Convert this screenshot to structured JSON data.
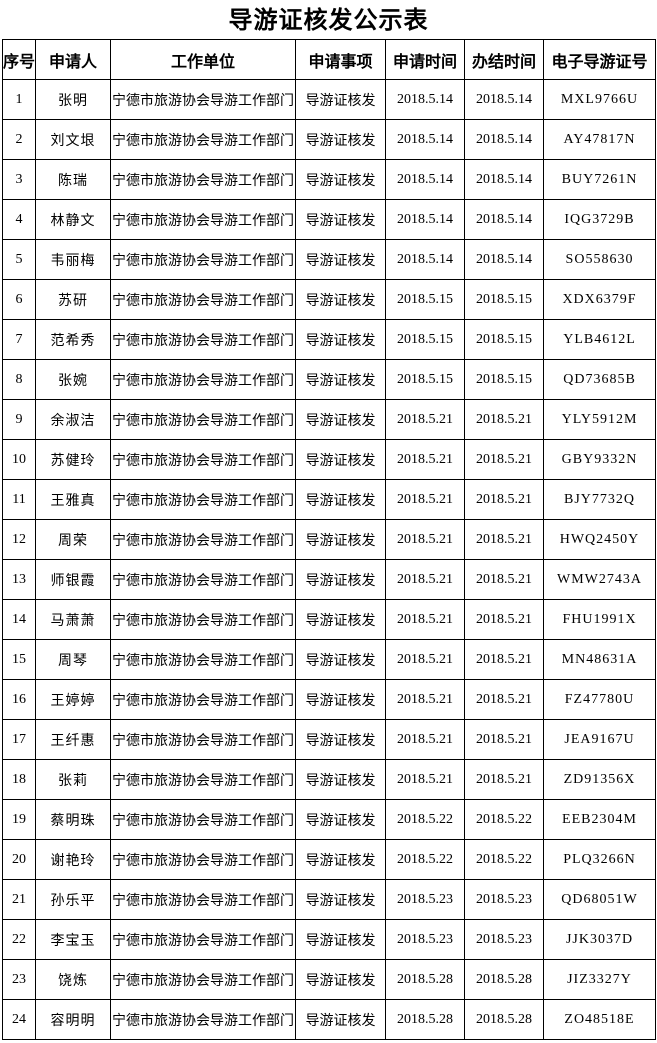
{
  "doc": {
    "title": "导游证核发公示表"
  },
  "table": {
    "columns": [
      "序号",
      "申请人",
      "工作单位",
      "申请事项",
      "申请时间",
      "办结时间",
      "电子导游证号"
    ],
    "rows": [
      [
        "1",
        "张明",
        "宁德市旅游协会导游工作部门",
        "导游证核发",
        "2018.5.14",
        "2018.5.14",
        "MXL9766U"
      ],
      [
        "2",
        "刘文垠",
        "宁德市旅游协会导游工作部门",
        "导游证核发",
        "2018.5.14",
        "2018.5.14",
        "AY47817N"
      ],
      [
        "3",
        "陈瑞",
        "宁德市旅游协会导游工作部门",
        "导游证核发",
        "2018.5.14",
        "2018.5.14",
        "BUY7261N"
      ],
      [
        "4",
        "林静文",
        "宁德市旅游协会导游工作部门",
        "导游证核发",
        "2018.5.14",
        "2018.5.14",
        "IQG3729B"
      ],
      [
        "5",
        "韦丽梅",
        "宁德市旅游协会导游工作部门",
        "导游证核发",
        "2018.5.14",
        "2018.5.14",
        "SO558630"
      ],
      [
        "6",
        "苏研",
        "宁德市旅游协会导游工作部门",
        "导游证核发",
        "2018.5.15",
        "2018.5.15",
        "XDX6379F"
      ],
      [
        "7",
        "范希秀",
        "宁德市旅游协会导游工作部门",
        "导游证核发",
        "2018.5.15",
        "2018.5.15",
        "YLB4612L"
      ],
      [
        "8",
        "张婉",
        "宁德市旅游协会导游工作部门",
        "导游证核发",
        "2018.5.15",
        "2018.5.15",
        "QD73685B"
      ],
      [
        "9",
        "余淑洁",
        "宁德市旅游协会导游工作部门",
        "导游证核发",
        "2018.5.21",
        "2018.5.21",
        "YLY5912M"
      ],
      [
        "10",
        "苏健玲",
        "宁德市旅游协会导游工作部门",
        "导游证核发",
        "2018.5.21",
        "2018.5.21",
        "GBY9332N"
      ],
      [
        "11",
        "王雅真",
        "宁德市旅游协会导游工作部门",
        "导游证核发",
        "2018.5.21",
        "2018.5.21",
        "BJY7732Q"
      ],
      [
        "12",
        "周荣",
        "宁德市旅游协会导游工作部门",
        "导游证核发",
        "2018.5.21",
        "2018.5.21",
        "HWQ2450Y"
      ],
      [
        "13",
        "师银霞",
        "宁德市旅游协会导游工作部门",
        "导游证核发",
        "2018.5.21",
        "2018.5.21",
        "WMW2743A"
      ],
      [
        "14",
        "马萧萧",
        "宁德市旅游协会导游工作部门",
        "导游证核发",
        "2018.5.21",
        "2018.5.21",
        "FHU1991X"
      ],
      [
        "15",
        "周琴",
        "宁德市旅游协会导游工作部门",
        "导游证核发",
        "2018.5.21",
        "2018.5.21",
        "MN48631A"
      ],
      [
        "16",
        "王婷婷",
        "宁德市旅游协会导游工作部门",
        "导游证核发",
        "2018.5.21",
        "2018.5.21",
        "FZ47780U"
      ],
      [
        "17",
        "王纤惠",
        "宁德市旅游协会导游工作部门",
        "导游证核发",
        "2018.5.21",
        "2018.5.21",
        "JEA9167U"
      ],
      [
        "18",
        "张莉",
        "宁德市旅游协会导游工作部门",
        "导游证核发",
        "2018.5.21",
        "2018.5.21",
        "ZD91356X"
      ],
      [
        "19",
        "蔡明珠",
        "宁德市旅游协会导游工作部门",
        "导游证核发",
        "2018.5.22",
        "2018.5.22",
        "EEB2304M"
      ],
      [
        "20",
        "谢艳玲",
        "宁德市旅游协会导游工作部门",
        "导游证核发",
        "2018.5.22",
        "2018.5.22",
        "PLQ3266N"
      ],
      [
        "21",
        "孙乐平",
        "宁德市旅游协会导游工作部门",
        "导游证核发",
        "2018.5.23",
        "2018.5.23",
        "QD68051W"
      ],
      [
        "22",
        "李宝玉",
        "宁德市旅游协会导游工作部门",
        "导游证核发",
        "2018.5.23",
        "2018.5.23",
        "JJK3037D"
      ],
      [
        "23",
        "饶炼",
        "宁德市旅游协会导游工作部门",
        "导游证核发",
        "2018.5.28",
        "2018.5.28",
        "JIZ3327Y"
      ],
      [
        "24",
        "容明明",
        "宁德市旅游协会导游工作部门",
        "导游证核发",
        "2018.5.28",
        "2018.5.28",
        "ZO48518E"
      ]
    ]
  }
}
